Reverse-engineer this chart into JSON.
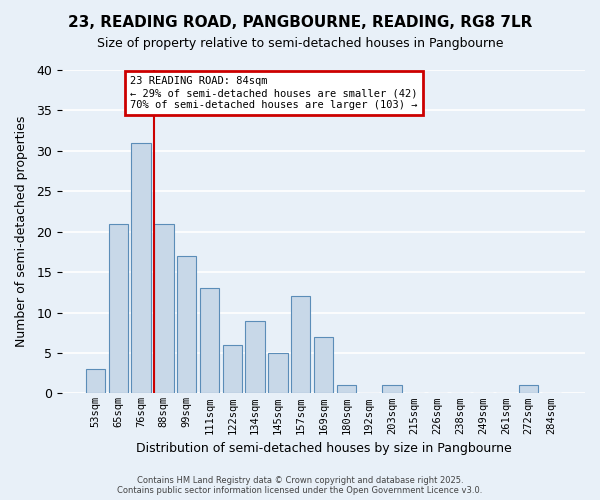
{
  "title": "23, READING ROAD, PANGBOURNE, READING, RG8 7LR",
  "subtitle": "Size of property relative to semi-detached houses in Pangbourne",
  "xlabel": "Distribution of semi-detached houses by size in Pangbourne",
  "ylabel": "Number of semi-detached properties",
  "footer_line1": "Contains HM Land Registry data © Crown copyright and database right 2025.",
  "footer_line2": "Contains public sector information licensed under the Open Government Licence v3.0.",
  "bar_labels": [
    "53sqm",
    "65sqm",
    "76sqm",
    "88sqm",
    "99sqm",
    "111sqm",
    "122sqm",
    "134sqm",
    "145sqm",
    "157sqm",
    "169sqm",
    "180sqm",
    "192sqm",
    "203sqm",
    "215sqm",
    "226sqm",
    "238sqm",
    "249sqm",
    "261sqm",
    "272sqm",
    "284sqm"
  ],
  "bar_values": [
    3,
    21,
    31,
    21,
    17,
    13,
    6,
    9,
    5,
    12,
    7,
    1,
    0,
    1,
    0,
    0,
    0,
    0,
    0,
    1,
    0
  ],
  "bar_color": "#c8d8e8",
  "bar_edge_color": "#5b8db8",
  "background_color": "#e8f0f8",
  "grid_color": "#ffffff",
  "annotation_title": "23 READING ROAD: 84sqm",
  "annotation_line2": "← 29% of semi-detached houses are smaller (42)",
  "annotation_line3": "70% of semi-detached houses are larger (103) →",
  "annotation_box_edge_color": "#cc0000",
  "red_line_x": 2.58,
  "ylim": [
    0,
    40
  ],
  "yticks": [
    0,
    5,
    10,
    15,
    20,
    25,
    30,
    35,
    40
  ]
}
